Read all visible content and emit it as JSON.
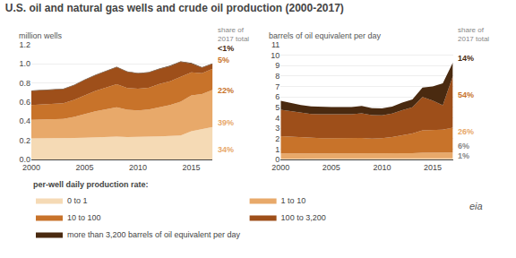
{
  "chart_data": [
    {
      "type": "area",
      "stacked": true,
      "title": "U.S. oil and natural gas wells and crude oil production (2000-2017)",
      "ylabel": "million wells",
      "x": [
        2000,
        2001,
        2002,
        2003,
        2004,
        2005,
        2006,
        2007,
        2008,
        2009,
        2010,
        2011,
        2012,
        2013,
        2014,
        2015,
        2016,
        2017
      ],
      "xlim": [
        2000,
        2017
      ],
      "xticks": [
        2000,
        2005,
        2010,
        2015
      ],
      "ylim": [
        0,
        1.2
      ],
      "yticks": [
        {
          "value": 0,
          "label": "0.0"
        },
        0.2,
        0.4,
        0.6,
        0.8,
        {
          "value": 1,
          "label": "1.0"
        },
        1.2
      ],
      "grid": true,
      "legend": "bottom",
      "legend_title": "per-well daily production rate:",
      "series": [
        {
          "name": "0 to 1",
          "color": "#f5dab5",
          "values": [
            0.22,
            0.22,
            0.22,
            0.22,
            0.225,
            0.228,
            0.232,
            0.235,
            0.238,
            0.235,
            0.235,
            0.238,
            0.242,
            0.245,
            0.25,
            0.295,
            0.315,
            0.34
          ]
        },
        {
          "name": "1 to 10",
          "color": "#e8a96a",
          "values": [
            0.195,
            0.198,
            0.2,
            0.205,
            0.22,
            0.248,
            0.272,
            0.29,
            0.308,
            0.285,
            0.278,
            0.285,
            0.305,
            0.325,
            0.355,
            0.375,
            0.37,
            0.39
          ]
        },
        {
          "name": "10 to 100",
          "color": "#c8732a",
          "values": [
            0.155,
            0.158,
            0.158,
            0.163,
            0.178,
            0.198,
            0.214,
            0.228,
            0.242,
            0.228,
            0.228,
            0.228,
            0.242,
            0.248,
            0.258,
            0.242,
            0.218,
            0.22
          ]
        },
        {
          "name": "100 to 3,200",
          "color": "#9e4f1a",
          "values": [
            0.148,
            0.148,
            0.148,
            0.148,
            0.152,
            0.158,
            0.163,
            0.168,
            0.178,
            0.168,
            0.158,
            0.158,
            0.158,
            0.158,
            0.158,
            0.092,
            0.058,
            0.05
          ]
        },
        {
          "name": "more than 3,200 barrels of oil equivalent per day",
          "color": "#4a2a10",
          "values": [
            0.005,
            0.005,
            0.005,
            0.005,
            0.005,
            0.005,
            0.005,
            0.005,
            0.005,
            0.005,
            0.005,
            0.005,
            0.005,
            0.005,
            0.005,
            0.005,
            0.005,
            0.005
          ]
        }
      ],
      "annotations": [
        {
          "text": "share of\n2017 total"
        },
        {
          "text": "34%",
          "color": "#e8a96a"
        },
        {
          "text": "39%",
          "color": "#e8a96a"
        },
        {
          "text": "22%",
          "color": "#c8732a"
        },
        {
          "text": "5%",
          "color": "#c8732a"
        },
        {
          "text": "<1%",
          "color": "#4a2a10"
        }
      ]
    },
    {
      "type": "area",
      "stacked": true,
      "ylabel": "barrels of oil equivalent per day",
      "x": [
        2000,
        2001,
        2002,
        2003,
        2004,
        2005,
        2006,
        2007,
        2008,
        2009,
        2010,
        2011,
        2012,
        2013,
        2014,
        2015,
        2016,
        2017
      ],
      "xlim": [
        2000,
        2017
      ],
      "xticks": [
        2000,
        2005,
        2010,
        2015
      ],
      "ylim": [
        0,
        11
      ],
      "yticks": [
        0,
        1,
        2,
        3,
        4,
        5,
        6,
        7,
        8,
        9,
        10,
        11
      ],
      "grid": true,
      "series": [
        {
          "name": "0 to 1",
          "color": "#f5dab5",
          "values": [
            0.08,
            0.08,
            0.08,
            0.08,
            0.08,
            0.08,
            0.08,
            0.08,
            0.08,
            0.08,
            0.08,
            0.08,
            0.09,
            0.09,
            0.1,
            0.1,
            0.1,
            0.1
          ]
        },
        {
          "name": "1 to 10",
          "color": "#e8a96a",
          "values": [
            0.5,
            0.5,
            0.48,
            0.47,
            0.47,
            0.47,
            0.47,
            0.47,
            0.47,
            0.46,
            0.46,
            0.47,
            0.49,
            0.51,
            0.54,
            0.55,
            0.55,
            0.56
          ]
        },
        {
          "name": "10 to 100",
          "color": "#c8732a",
          "values": [
            1.65,
            1.6,
            1.55,
            1.52,
            1.5,
            1.5,
            1.5,
            1.5,
            1.52,
            1.46,
            1.5,
            1.6,
            1.75,
            1.9,
            2.15,
            2.2,
            2.2,
            2.4
          ]
        },
        {
          "name": "100 to 3,200",
          "color": "#9e4f1a",
          "values": [
            2.55,
            2.45,
            2.35,
            2.3,
            2.28,
            2.28,
            2.28,
            2.28,
            2.35,
            2.25,
            2.2,
            2.25,
            2.4,
            2.5,
            3.2,
            2.8,
            2.35,
            4.95
          ]
        },
        {
          "name": "more than 3,200 barrels of oil equivalent per day",
          "color": "#4a2a10",
          "values": [
            0.85,
            0.8,
            0.75,
            0.72,
            0.7,
            0.7,
            0.7,
            0.7,
            0.72,
            0.68,
            0.65,
            0.68,
            0.72,
            0.75,
            0.9,
            1.35,
            2.1,
            1.29
          ]
        }
      ],
      "annotations": [
        {
          "text": "share of\n2017 total"
        },
        {
          "text": "1%",
          "color": "#888888"
        },
        {
          "text": "6%",
          "color": "#888888"
        },
        {
          "text": "26%",
          "color": "#e8a96a"
        },
        {
          "text": "54%",
          "color": "#c8732a"
        },
        {
          "text": "14%",
          "color": "#4a2a10"
        },
        {
          "text": "eia"
        }
      ]
    }
  ]
}
